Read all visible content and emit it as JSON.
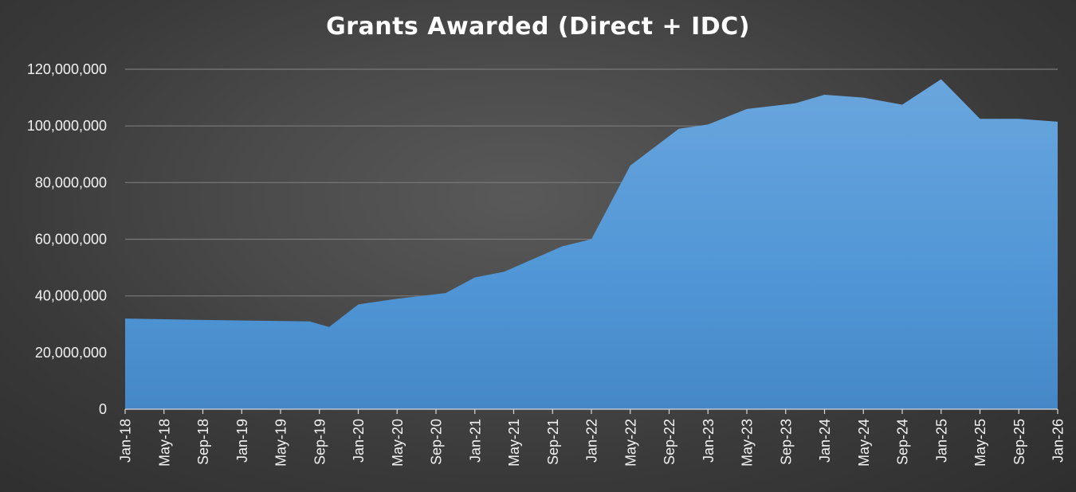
{
  "chart_data": {
    "type": "area",
    "title": "Grants Awarded (Direct + IDC)",
    "xlabel": "",
    "ylabel": "",
    "ylim": [
      0,
      120000000
    ],
    "y_ticks": [
      0,
      20000000,
      40000000,
      60000000,
      80000000,
      100000000,
      120000000
    ],
    "y_tick_labels": [
      "0",
      "20,000,000",
      "40,000,000",
      "60,000,000",
      "80,000,000",
      "100,000,000",
      "120,000,000"
    ],
    "xlim": [
      "2018-01",
      "2026-01"
    ],
    "x_tick_labels": [
      "Jan-18",
      "May-18",
      "Sep-18",
      "Jan-19",
      "May-19",
      "Sep-19",
      "Jan-20",
      "May-20",
      "Sep-20",
      "Jan-21",
      "May-21",
      "Sep-21",
      "Jan-22",
      "May-22",
      "Sep-22",
      "Jan-23",
      "May-23",
      "Sep-23",
      "Jan-24",
      "May-24",
      "Sep-24",
      "Jan-25",
      "May-25",
      "Sep-25",
      "Jan-26"
    ],
    "grid": true,
    "legend": "none",
    "fill_color": "#5b9bd5",
    "x": [
      "2018-01",
      "2018-09",
      "2019-08",
      "2019-10",
      "2020-01",
      "2020-05",
      "2020-10",
      "2021-01",
      "2021-04",
      "2021-10",
      "2022-01",
      "2022-05",
      "2022-10",
      "2023-01",
      "2023-05",
      "2023-10",
      "2024-01",
      "2024-05",
      "2024-09",
      "2025-01",
      "2025-05",
      "2025-09",
      "2026-01"
    ],
    "values": [
      32000000,
      31500000,
      31000000,
      29000000,
      37000000,
      39000000,
      41000000,
      46500000,
      48500000,
      57500000,
      60000000,
      86000000,
      99000000,
      100500000,
      106000000,
      108000000,
      111000000,
      110000000,
      107500000,
      116500000,
      102500000,
      102500000,
      101500000
    ]
  }
}
